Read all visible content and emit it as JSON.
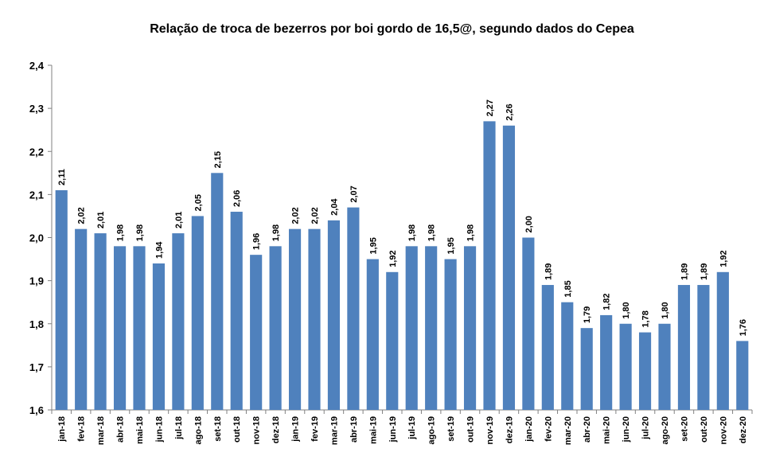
{
  "chart_data": {
    "type": "bar",
    "title": "Relação de troca de bezerros por boi gordo de 16,5@, segundo dados do Cepea",
    "xlabel": "",
    "ylabel": "",
    "ylim": [
      1.6,
      2.4
    ],
    "yticks": [
      "1,6",
      "1,7",
      "1,8",
      "1,9",
      "2,0",
      "2,1",
      "2,2",
      "2,3",
      "2,4"
    ],
    "grid": false,
    "bar_color": "#4F81BD",
    "categories": [
      "jan-18",
      "fev-18",
      "mar-18",
      "abr-18",
      "mai-18",
      "jun-18",
      "jul-18",
      "ago-18",
      "set-18",
      "out-18",
      "nov-18",
      "dez-18",
      "jan-19",
      "fev-19",
      "mar-19",
      "abr-19",
      "mai-19",
      "jun-19",
      "jul-19",
      "ago-19",
      "set-19",
      "out-19",
      "nov-19",
      "dez-19",
      "jan-20",
      "fev-20",
      "mar-20",
      "abr-20",
      "mai-20",
      "jun-20",
      "jul-20",
      "ago-20",
      "set-20",
      "out-20",
      "nov-20",
      "dez-20"
    ],
    "values": [
      2.11,
      2.02,
      2.01,
      1.98,
      1.98,
      1.94,
      2.01,
      2.05,
      2.15,
      2.06,
      1.96,
      1.98,
      2.02,
      2.02,
      2.04,
      2.07,
      1.95,
      1.92,
      1.98,
      1.98,
      1.95,
      1.98,
      2.27,
      2.26,
      2.0,
      1.89,
      1.85,
      1.79,
      1.82,
      1.8,
      1.78,
      1.8,
      1.89,
      1.89,
      1.92,
      1.76
    ],
    "labels": [
      "2,11",
      "2,02",
      "2,01",
      "1,98",
      "1,98",
      "1,94",
      "2,01",
      "2,05",
      "2,15",
      "2,06",
      "1,96",
      "1,98",
      "2,02",
      "2,02",
      "2,04",
      "2,07",
      "1,95",
      "1,92",
      "1,98",
      "1,98",
      "1,95",
      "1,98",
      "2,27",
      "2,26",
      "2,00",
      "1,89",
      "1,85",
      "1,79",
      "1,82",
      "1,80",
      "1,78",
      "1,80",
      "1,89",
      "1,89",
      "1,92",
      "1,76"
    ]
  }
}
